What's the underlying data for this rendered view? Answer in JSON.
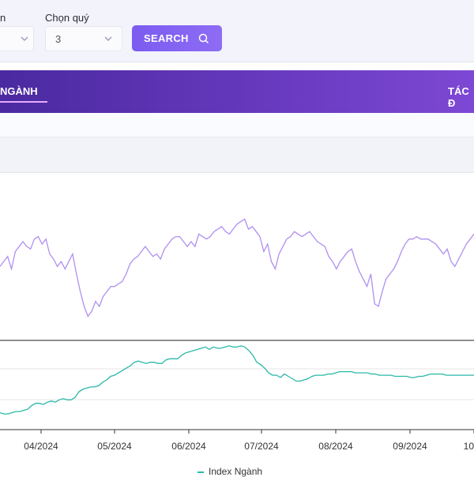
{
  "filters": {
    "first_label": "n",
    "first_value": "",
    "quarter_label": "Chọn quý",
    "quarter_value": "3",
    "search_label": "SEARCH"
  },
  "tabs": {
    "active_label": "NGÀNH",
    "right_label": "TÁC Đ"
  },
  "icons": {
    "select_chevron": "chevron-down-icon",
    "search": "search-icon"
  },
  "colors": {
    "accent": "#7b5cf0",
    "upper_series": "#b08ff0",
    "lower_series": "#2ab8a8"
  },
  "chart_data": {
    "type": "line",
    "x_tick_labels": [
      "04/2024",
      "05/2024",
      "06/2024",
      "07/2024",
      "08/2024",
      "09/2024",
      "10"
    ],
    "series": [
      {
        "name": "",
        "panel": "upper",
        "values": [
          112,
          114,
          116,
          111,
          118,
          120,
          122,
          120,
          119,
          123,
          124,
          121,
          123,
          117,
          115,
          112,
          114,
          111,
          114,
          117,
          109,
          102,
          96,
          92,
          94,
          98,
          96,
          100,
          102,
          104,
          104,
          105,
          106,
          109,
          113,
          115,
          116,
          118,
          120,
          118,
          116,
          117,
          115,
          119,
          121,
          123,
          124,
          124,
          122,
          120,
          122,
          120,
          125,
          124,
          123,
          124,
          126,
          127,
          128,
          126,
          125,
          127,
          129,
          130,
          131,
          127,
          128,
          126,
          124,
          118,
          121,
          114,
          111,
          117,
          120,
          123,
          124,
          126,
          125,
          124,
          125,
          126,
          124,
          122,
          121,
          120,
          116,
          114,
          111,
          114,
          116,
          118,
          119,
          114,
          110,
          107,
          104,
          109,
          97,
          96,
          102,
          107,
          109,
          111,
          114,
          118,
          121,
          123,
          123,
          124,
          123,
          123,
          123,
          122,
          121,
          119,
          117,
          119,
          114,
          112,
          115,
          118,
          121,
          123,
          125
        ],
        "unit_note": ""
      },
      {
        "name": "Index Ngành",
        "panel": "lower",
        "values": [
          119,
          118,
          118,
          119,
          120,
          120,
          121,
          122,
          125,
          127,
          127,
          126,
          128,
          129,
          128,
          130,
          131,
          130,
          130,
          132,
          137,
          139,
          140,
          141,
          141,
          142,
          145,
          147,
          150,
          151,
          153,
          155,
          157,
          159,
          162,
          163,
          162,
          161,
          162,
          162,
          161,
          161,
          164,
          165,
          165,
          165,
          168,
          170,
          171,
          172,
          173,
          174,
          175,
          173,
          175,
          174,
          174,
          175,
          176,
          175,
          175,
          176,
          175,
          172,
          168,
          162,
          160,
          157,
          153,
          151,
          151,
          149,
          152,
          150,
          148,
          146,
          146,
          147,
          148,
          150,
          151,
          151,
          151,
          152,
          152,
          153,
          154,
          154,
          154,
          154,
          153,
          153,
          153,
          153,
          152,
          152,
          151,
          151,
          151,
          151,
          150,
          150,
          150,
          150,
          149,
          149,
          150,
          150,
          151,
          152,
          152,
          152,
          152,
          151,
          151,
          151,
          151,
          151,
          151,
          151,
          151
        ],
        "unit_note": ""
      }
    ]
  }
}
